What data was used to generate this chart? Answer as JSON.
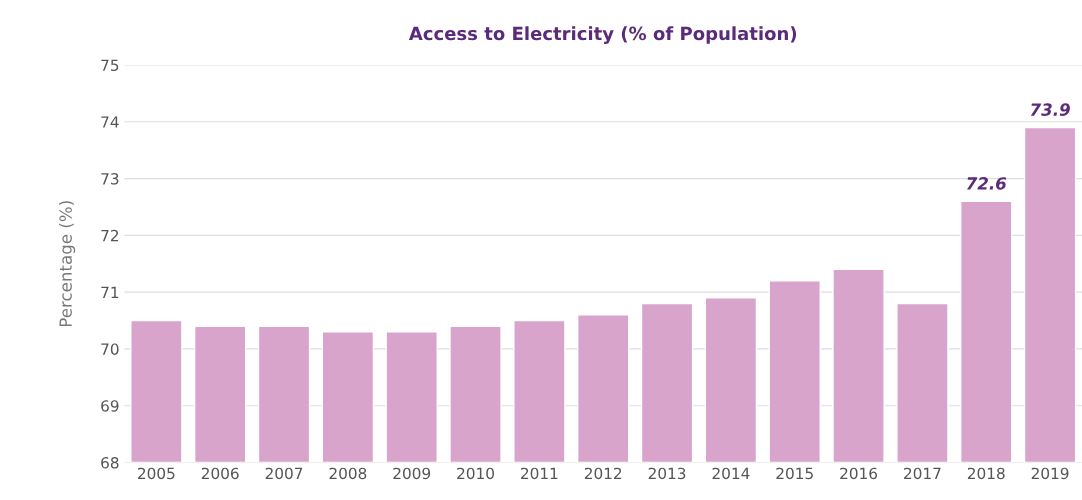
{
  "chart_data": {
    "type": "bar",
    "title": "Access to Electricity (% of Population)",
    "ylabel": "Percentage (%)",
    "categories": [
      "2005",
      "2006",
      "2007",
      "2008",
      "2009",
      "2010",
      "2011",
      "2012",
      "2013",
      "2014",
      "2015",
      "2016",
      "2017",
      "2018",
      "2019"
    ],
    "values": [
      70.5,
      70.4,
      70.4,
      70.3,
      70.3,
      70.4,
      70.5,
      70.6,
      70.8,
      70.9,
      71.2,
      71.4,
      70.8,
      72.6,
      73.9
    ],
    "value_labels": [
      null,
      null,
      null,
      null,
      null,
      null,
      null,
      null,
      null,
      null,
      null,
      null,
      null,
      "72.6",
      "73.9"
    ],
    "color": "#d8a4cc",
    "ylim": [
      68,
      75
    ],
    "yticks": [
      68,
      69,
      70,
      71,
      72,
      73,
      74,
      75
    ],
    "grid": "y",
    "legend": false
  }
}
